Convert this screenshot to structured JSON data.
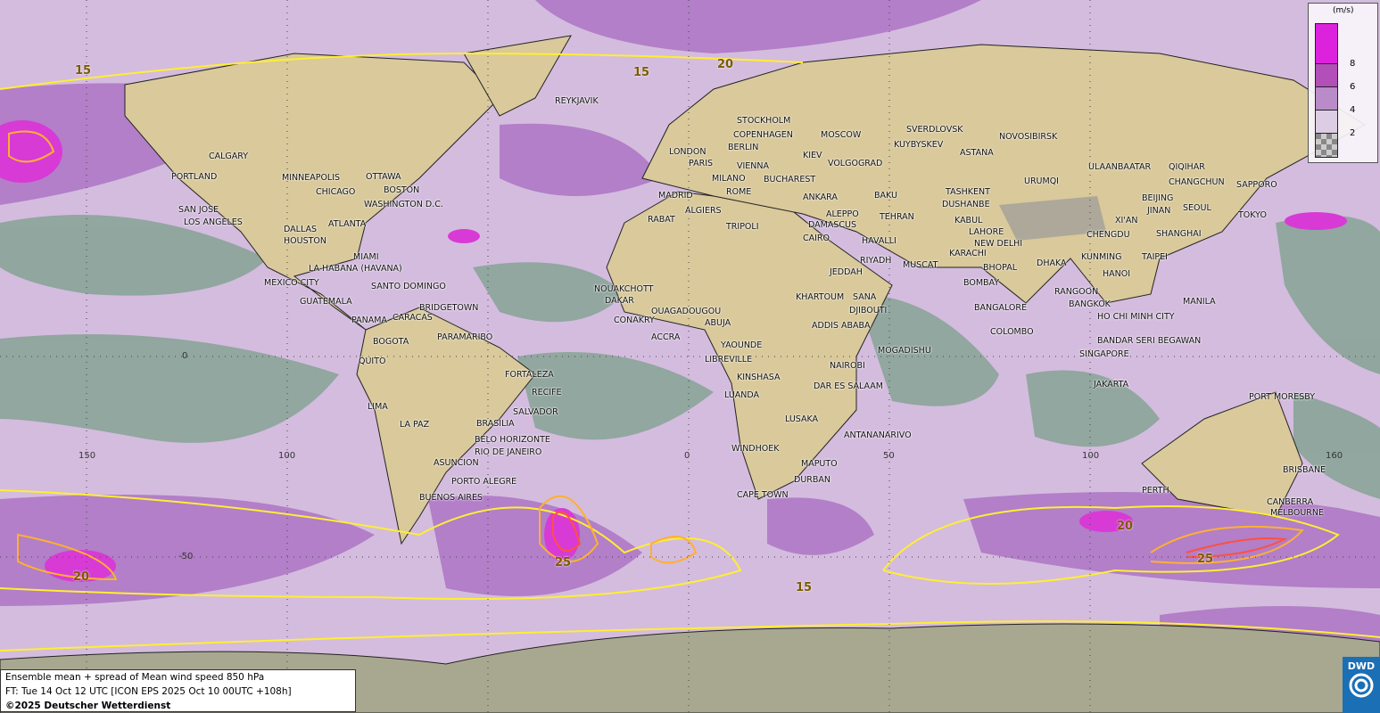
{
  "title_line": "Ensemble mean + spread of Mean wind speed 850 hPa",
  "forecast_line": "FT: Tue 14 Oct 12 UTC [ICON EPS 2025 Oct 10 00UTC +108h]",
  "copyright": "©2025 Deutscher Wetterdienst",
  "logo_text": "DWD",
  "legend": {
    "unit": "(m/s)",
    "ticks": [
      "8",
      "6",
      "4",
      "2"
    ],
    "colors": [
      "#dd22dd",
      "#b34fb8",
      "#b98bc8",
      "#dccde4",
      "checker"
    ]
  },
  "contour_labels": [
    "15",
    "20",
    "15",
    "20",
    "25",
    "15",
    "20",
    "25"
  ],
  "grid_labels": [
    "150",
    "100",
    "50",
    "0",
    "50",
    "100",
    "160",
    "0",
    "-50"
  ],
  "colors": {
    "ocean_low": "#d4bcde",
    "calm": "#8da59c",
    "mid": "#b27fc8",
    "high": "#d83ad6",
    "land": "#d9c99b",
    "contour15": "#ffee33",
    "contour20": "#ffb030",
    "contour25": "#ff5040"
  },
  "cities": [
    "REYKJAVIK",
    "STOCKHOLM",
    "COPENHAGEN",
    "MOSCOW",
    "BERLIN",
    "LONDON",
    "PARIS",
    "VIENNA",
    "KIEV",
    "VOLGOGRAD",
    "SVERDLOVSK",
    "NOVOSIBIRSK",
    "KUYBYSKEV",
    "ASTANA",
    "MILANO",
    "ROME",
    "BUCHAREST",
    "MADRID",
    "ALGIERS",
    "ANKARA",
    "BAKU",
    "TASHKENT",
    "DUSHANBE",
    "URUMQI",
    "ULAANBAATAR",
    "QIQIHAR",
    "CHANGCHUN",
    "SAPPORO",
    "BEIJING",
    "SEOUL",
    "JINAN",
    "TOKYO",
    "RABAT",
    "TRIPOLI",
    "ALEPPO",
    "DAMASCUS",
    "TEHRAN",
    "KABUL",
    "LAHORE",
    "NEW DELHI",
    "XI'AN",
    "CHENGDU",
    "SHANGHAI",
    "CAIRO",
    "HAVALLI",
    "RIYADH",
    "MUSCAT",
    "KARACHI",
    "BHOPAL",
    "DHAKA",
    "KUNMING",
    "HANOI",
    "TAIPEI",
    "JEDDAH",
    "BOMBAY",
    "RANGOON",
    "BANGKOK",
    "MANILA",
    "NOUAKCHOTT",
    "DAKAR",
    "CONAKRY",
    "OUAGADOUGOU",
    "ABUJA",
    "ACCRA",
    "KHARTOUM",
    "SANA",
    "DJIBOUTI",
    "ADDIS ABABA",
    "BANGALORE",
    "COLOMBO",
    "HO CHI MINH CITY",
    "BANDAR SERI BEGAWAN",
    "SINGAPORE",
    "YAOUNDE",
    "LIBREVILLE",
    "MOGADISHU",
    "NAIROBI",
    "KINSHASA",
    "LUANDA",
    "DAR ES SALAAM",
    "JAKARTA",
    "PORT MORESBY",
    "LUSAKA",
    "ANTANANARIVO",
    "WINDHOEK",
    "MAPUTO",
    "DURBAN",
    "CAPE TOWN",
    "PERTH",
    "BRISBANE",
    "CANBERRA",
    "MELBOURNE",
    "CALGARY",
    "PORTLAND",
    "MINNEAPOLIS",
    "OTTAWA",
    "CHICAGO",
    "BOSTON",
    "WASHINGTON D.C.",
    "SAN JOSE",
    "LOS ANGELES",
    "DALLAS",
    "HOUSTON",
    "ATLANTA",
    "MIAMI",
    "LA HABANA (HAVANA)",
    "MEXICO CITY",
    "SANTO DOMINGO",
    "BRIDGETOWN",
    "GUATEMALA",
    "PANAMA",
    "CARACAS",
    "BOGOTA",
    "PARAMARIBO",
    "QUITO",
    "FORTALEZA",
    "RECIFE",
    "LIMA",
    "LA PAZ",
    "SALVADOR",
    "BRASILIA",
    "BELO HORIZONTE",
    "RIO DE JANEIRO",
    "ASUNCION",
    "PORTO ALEGRE",
    "BUENOS AIRES"
  ]
}
